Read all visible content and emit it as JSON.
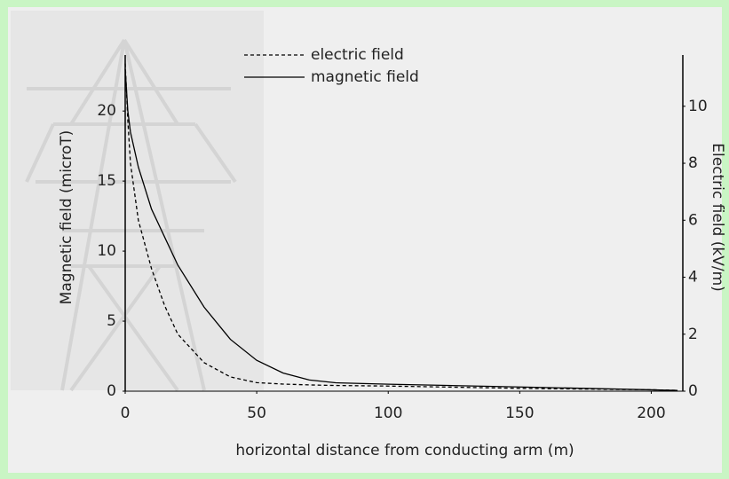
{
  "chart_data": {
    "type": "line",
    "x_label": "horizontal distance from conducting arm (m)",
    "y_label": "Magnetic field (microT)",
    "y2_label": "Electric field (kV/m)",
    "x": [
      0,
      1,
      2,
      5,
      10,
      15,
      20,
      30,
      40,
      50,
      60,
      70,
      80,
      100,
      150,
      200,
      210
    ],
    "series": [
      {
        "name": "electric field",
        "color": "#000000",
        "linestyle": "dashed",
        "axis": "y2",
        "values": [
          11.5,
          9.5,
          8,
          6,
          4.3,
          3,
          2,
          1,
          0.5,
          0.3,
          0.25,
          0.22,
          0.2,
          0.18,
          0.1,
          0.05,
          0.03
        ]
      },
      {
        "name": "magnetic field",
        "color": "#000000",
        "linestyle": "solid",
        "axis": "y",
        "values": [
          23,
          20,
          18.5,
          16,
          13,
          11,
          9,
          6,
          3.7,
          2.2,
          1.3,
          0.8,
          0.6,
          0.5,
          0.3,
          0.1,
          0.05
        ]
      }
    ],
    "xlim": [
      0,
      212
    ],
    "xticks": [
      0,
      50,
      100,
      150,
      200
    ],
    "ylim": [
      0,
      24
    ],
    "yticks": [
      0,
      5,
      10,
      15,
      20
    ],
    "y2lim": [
      0,
      11.8
    ],
    "y2ticks": [
      0,
      2,
      4,
      6,
      8,
      10
    ],
    "grid": false,
    "legend": "top"
  }
}
